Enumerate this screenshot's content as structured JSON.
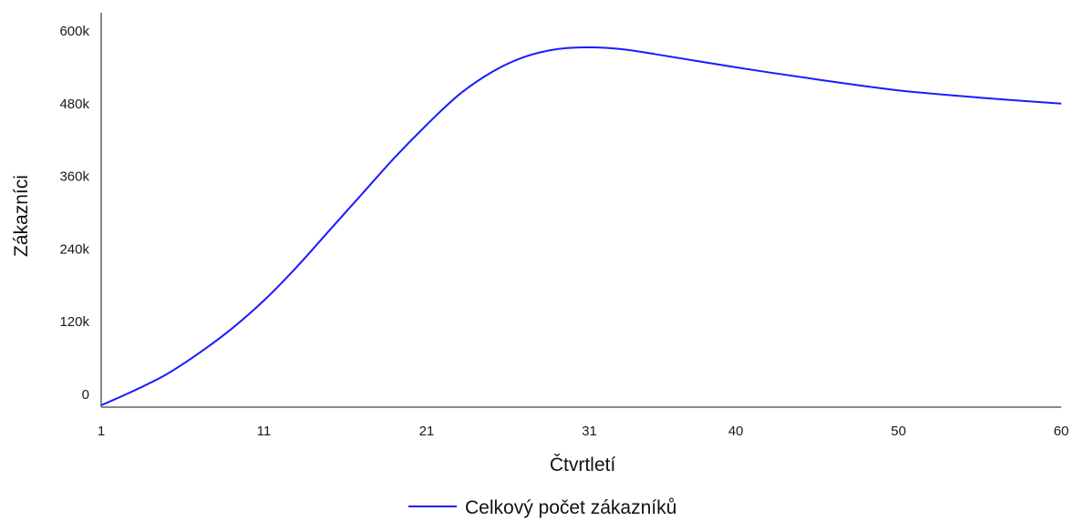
{
  "chart_data": {
    "type": "line",
    "xlabel": "Čtvrtletí",
    "ylabel": "Zákazníci",
    "xlim": [
      1,
      60
    ],
    "ylim": [
      0,
      600000
    ],
    "x_ticks": [
      1,
      11,
      21,
      31,
      40,
      50,
      60
    ],
    "y_ticks": [
      0,
      120000,
      240000,
      360000,
      480000,
      600000
    ],
    "x_tick_labels": [
      "1",
      "11",
      "21",
      "31",
      "40",
      "50",
      "60"
    ],
    "y_tick_labels": [
      "0",
      "120k",
      "240k",
      "360k",
      "480k",
      "600k"
    ],
    "grid": false,
    "legend_position": "bottom",
    "series": [
      {
        "name": "Celkový počet zákazníků",
        "color": "#1a1aff",
        "x": [
          1,
          3,
          5,
          7,
          9,
          11,
          13,
          15,
          17,
          19,
          21,
          23,
          25,
          27,
          29,
          31,
          33,
          35,
          40,
          45,
          50,
          55,
          60
        ],
        "y": [
          -18000,
          6000,
          33000,
          68000,
          108000,
          155000,
          210000,
          270000,
          330000,
          390000,
          445000,
          495000,
          532000,
          557000,
          570000,
          573000,
          570000,
          562000,
          540000,
          520000,
          502000,
          490000,
          480000
        ]
      }
    ]
  }
}
